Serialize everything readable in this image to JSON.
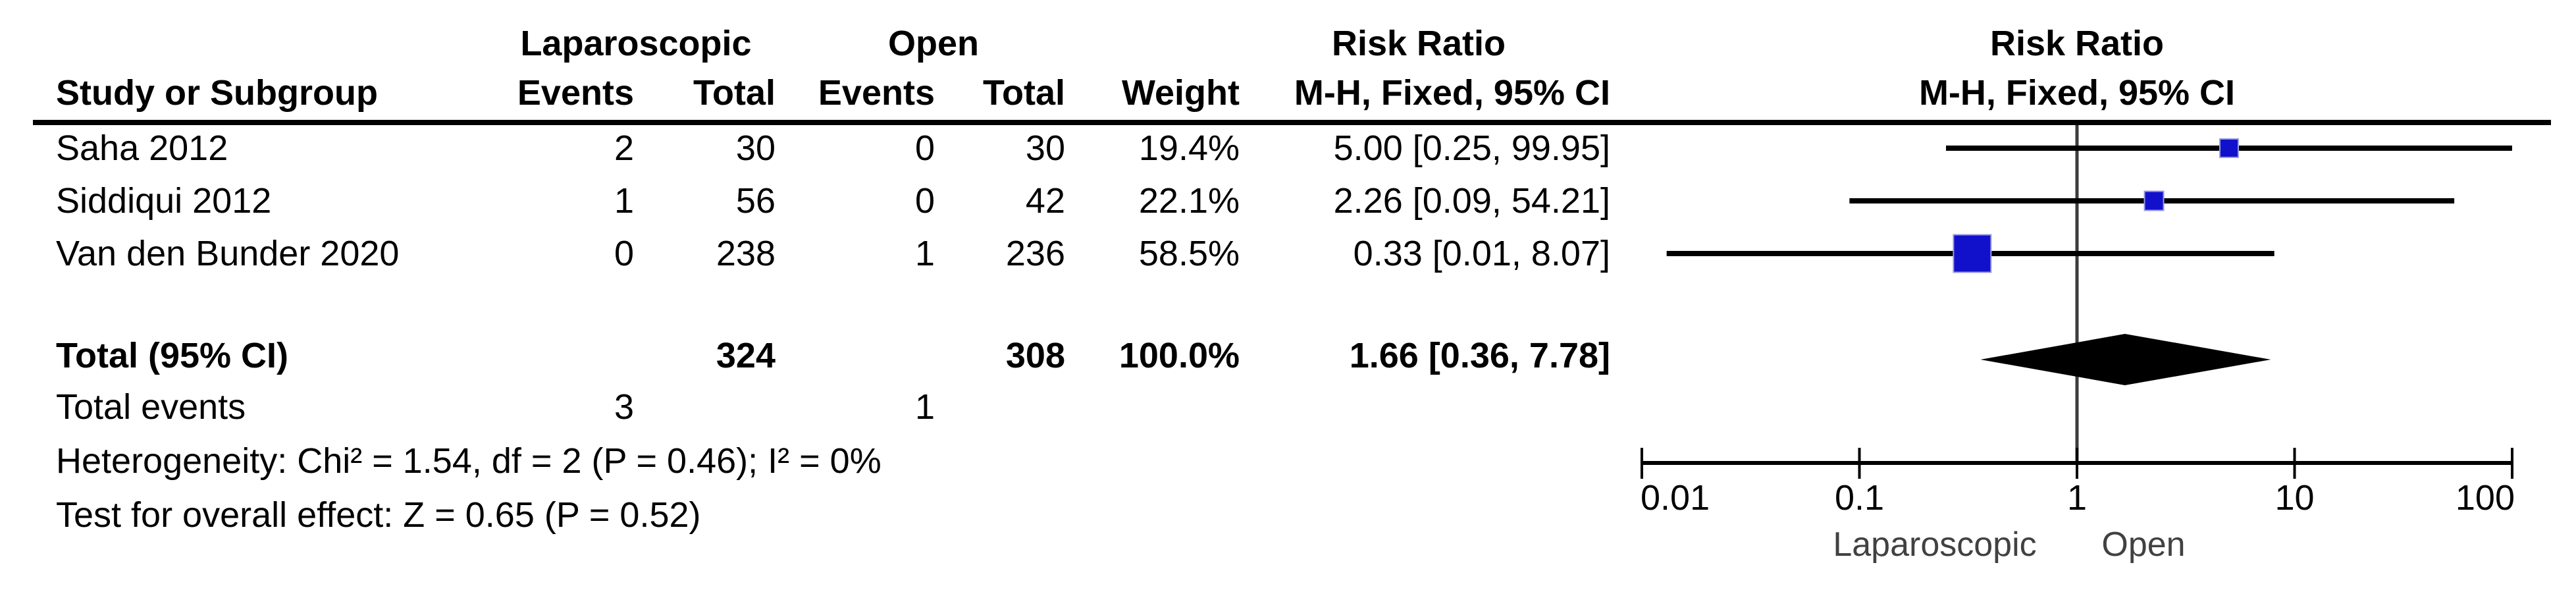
{
  "table": {
    "headers": {
      "group1": "Laparoscopic",
      "group2": "Open",
      "risk_ratio_left": "Risk Ratio",
      "risk_ratio_right": "Risk Ratio",
      "study": "Study or Subgroup",
      "events1": "Events",
      "total1": "Total",
      "events2": "Events",
      "total2": "Total",
      "weight": "Weight",
      "mh_left": "M-H, Fixed, 95% CI",
      "mh_right": "M-H, Fixed, 95% CI"
    },
    "studies": [
      {
        "name": "Saha 2012",
        "events1": "2",
        "total1": "30",
        "events2": "0",
        "total2": "30",
        "weight": "19.4%",
        "ci_text": "5.00 [0.25, 99.95]"
      },
      {
        "name": "Siddiqui 2012",
        "events1": "1",
        "total1": "56",
        "events2": "0",
        "total2": "42",
        "weight": "22.1%",
        "ci_text": "2.26 [0.09, 54.21]"
      },
      {
        "name": "Van den Bunder 2020",
        "events1": "0",
        "total1": "238",
        "events2": "1",
        "total2": "236",
        "weight": "58.5%",
        "ci_text": "0.33 [0.01, 8.07]"
      }
    ],
    "total": {
      "label": "Total (95% CI)",
      "total1": "324",
      "total2": "308",
      "weight": "100.0%",
      "ci_text": "1.66 [0.36, 7.78]"
    },
    "total_events": {
      "label": "Total events",
      "events1": "3",
      "events2": "1"
    },
    "heterogeneity": "Heterogeneity: Chi² = 1.54, df = 2 (P = 0.46); I² = 0%",
    "overall_effect": "Test for overall effect: Z = 0.65 (P = 0.52)"
  },
  "chart_data": {
    "type": "forest",
    "effect_measure": "Risk Ratio",
    "method": "M-H, Fixed, 95% CI",
    "x_scale": "log10",
    "x_ticks": [
      0.01,
      0.1,
      1,
      10,
      100
    ],
    "x_tick_labels": [
      "0.01",
      "0.1",
      "1",
      "10",
      "100"
    ],
    "studies": [
      {
        "label": "Saha 2012",
        "rr": 5.0,
        "ci_low": 0.25,
        "ci_high": 99.95,
        "weight_pct": 19.4
      },
      {
        "label": "Siddiqui 2012",
        "rr": 2.26,
        "ci_low": 0.09,
        "ci_high": 54.21,
        "weight_pct": 22.1
      },
      {
        "label": "Van den Bunder 2020",
        "rr": 0.33,
        "ci_low": 0.01,
        "ci_low_exact": 0.013,
        "ci_high": 8.07,
        "weight_pct": 58.5
      }
    ],
    "total": {
      "label": "Total (95% CI)",
      "rr": 1.66,
      "ci_low": 0.36,
      "ci_high": 7.78,
      "weight_pct": 100.0
    },
    "axis_footer_labels": [
      "Laparoscopic",
      "Open"
    ],
    "marker_color": "#1111CC",
    "marker_edge_color": "#9a9ae0",
    "diamond_color": "#000000",
    "line_color": "#000000",
    "center_line_color": "#3c3c3c",
    "footer_label_color": "#414141"
  }
}
